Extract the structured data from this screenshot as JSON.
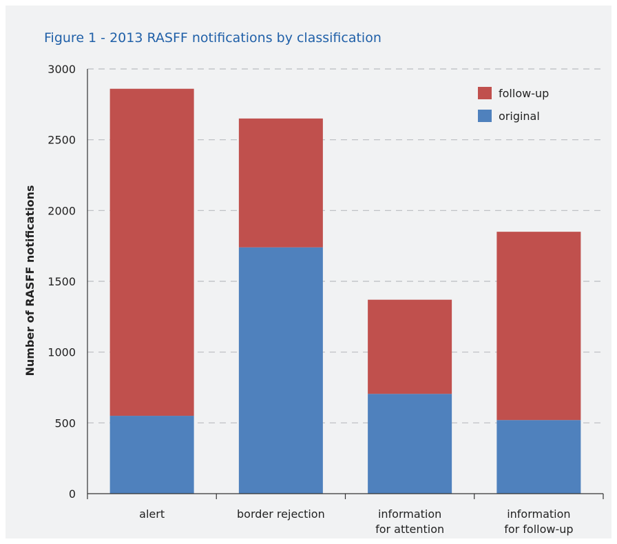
{
  "chart_data": {
    "type": "bar",
    "stacked": true,
    "title": "Figure 1 - 2013 RASFF notifications by classification",
    "ylabel": "Number of RASFF notifications",
    "xlabel": "",
    "ylim": [
      0,
      3000
    ],
    "yticks": [
      0,
      500,
      1000,
      1500,
      2000,
      2500,
      3000
    ],
    "grid": "dashed horizontal",
    "legend_position": "top-right",
    "categories": [
      [
        "alert"
      ],
      [
        "border rejection"
      ],
      [
        "information",
        "for attention"
      ],
      [
        "information",
        "for follow-up"
      ]
    ],
    "series": [
      {
        "name": "original",
        "color": "#4f81bd",
        "values": [
          550,
          1740,
          705,
          520
        ]
      },
      {
        "name": "follow-up",
        "color": "#c0504d",
        "values": [
          2310,
          910,
          665,
          1330
        ]
      }
    ]
  }
}
